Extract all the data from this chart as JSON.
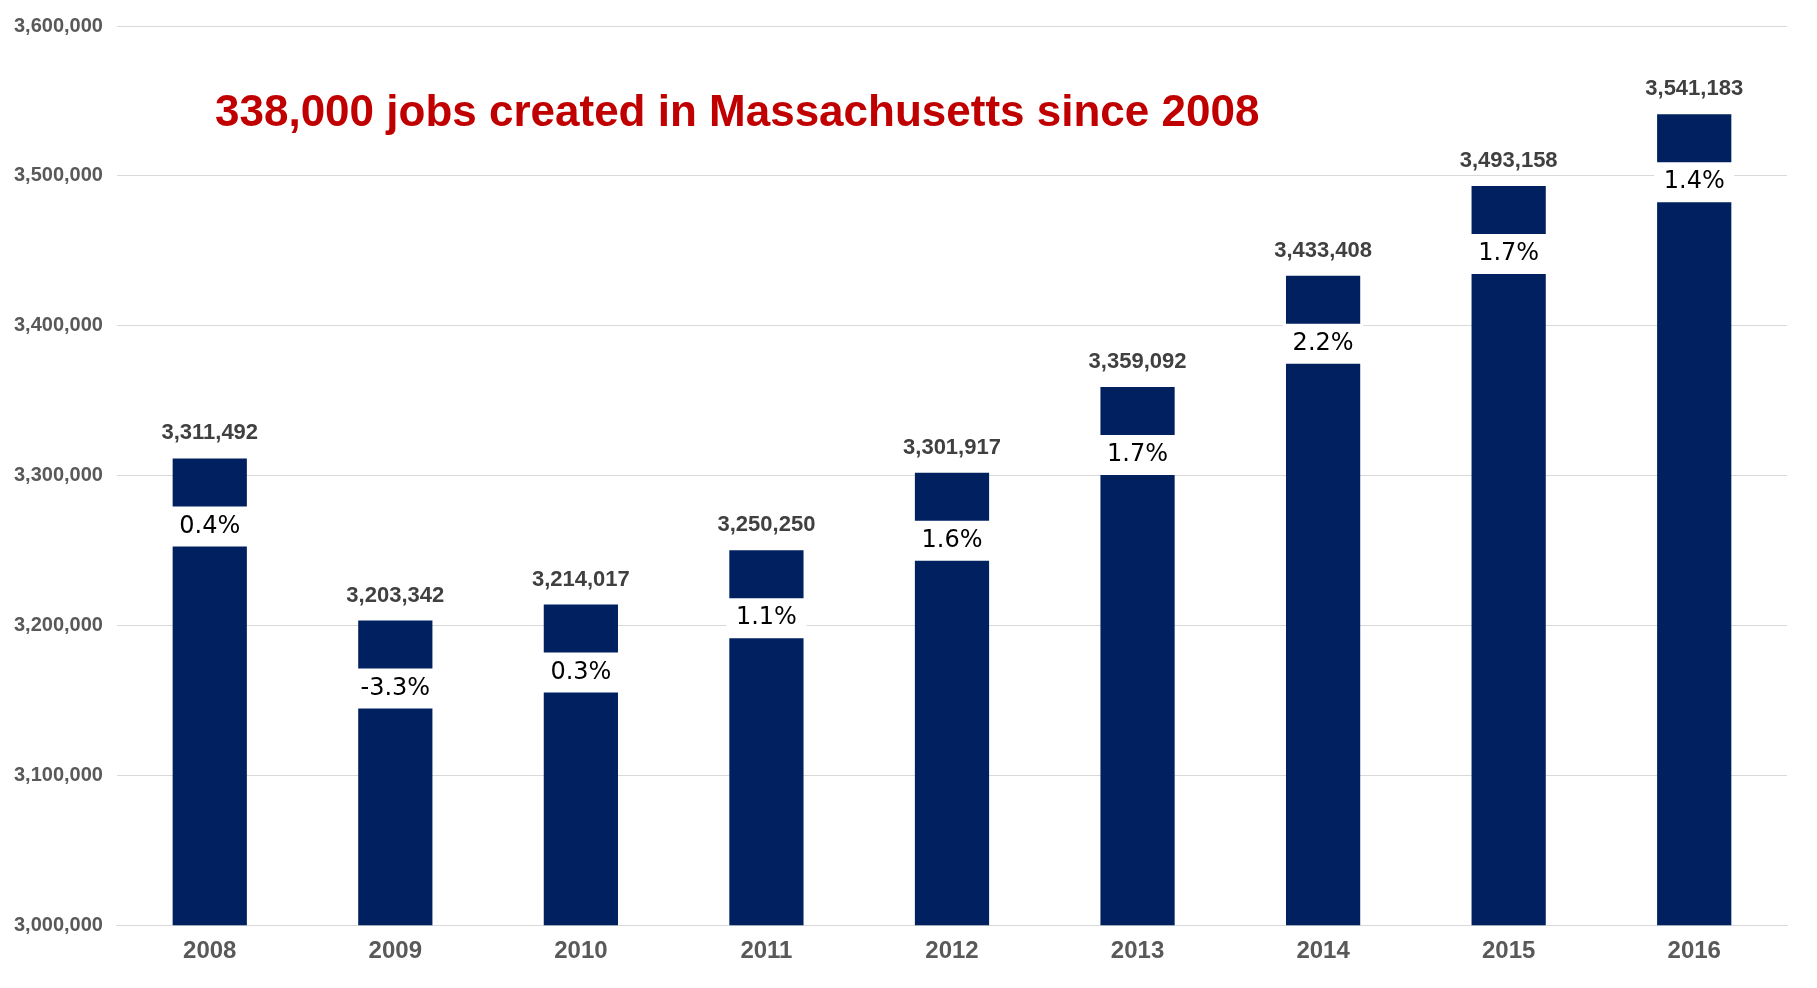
{
  "chart_data": {
    "type": "bar",
    "title": "338,000 jobs created in Massachusetts since 2008",
    "categories": [
      "2008",
      "2009",
      "2010",
      "2011",
      "2012",
      "2013",
      "2014",
      "2015",
      "2016"
    ],
    "values": [
      3311492,
      3203342,
      3214017,
      3250250,
      3301917,
      3359092,
      3433408,
      3493158,
      3541183
    ],
    "value_labels": [
      "3,311,492",
      "3,203,342",
      "3,214,017",
      "3,250,250",
      "3,301,917",
      "3,359,092",
      "3,433,408",
      "3,493,158",
      "3,541,183"
    ],
    "color": "#002060",
    "ylim": [
      3000000,
      3600000
    ],
    "yticks": [
      {
        "value": 3000000,
        "label": "3,000,000"
      },
      {
        "value": 3100000,
        "label": "3,100,000"
      },
      {
        "value": 3200000,
        "label": "3,200,000"
      },
      {
        "value": 3300000,
        "label": "3,300,000"
      },
      {
        "value": 3400000,
        "label": "3,400,000"
      },
      {
        "value": 3500000,
        "label": "3,500,000"
      },
      {
        "value": 3600000,
        "label": "3,600,000"
      }
    ],
    "grid": "y",
    "legend": false,
    "annotations": [
      "0.4%",
      "-3.3%",
      "0.3%",
      "1.1%",
      "1.6%",
      "1.7%",
      "2.2%",
      "1.7%",
      "1.4%"
    ]
  }
}
